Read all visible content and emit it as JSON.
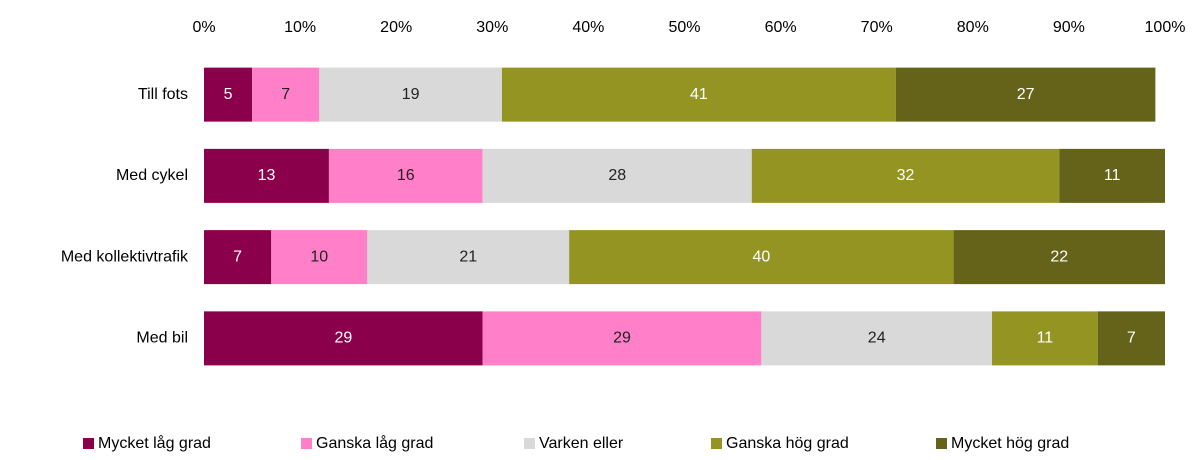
{
  "chart_data": {
    "type": "stacked_barh",
    "categories": [
      "Till fots",
      "Med cykel",
      "Med kollektivtrafik",
      "Med bil"
    ],
    "series": [
      {
        "name": "Mycket låg grad",
        "color": "#8b004b",
        "values": [
          5,
          13,
          7,
          29
        ]
      },
      {
        "name": "Ganska låg grad",
        "color": "#ff80c8",
        "values": [
          7,
          16,
          10,
          29
        ]
      },
      {
        "name": "Varken eller",
        "color": "#d9d9d9",
        "values": [
          19,
          28,
          21,
          24
        ]
      },
      {
        "name": "Ganska hög grad",
        "color": "#949423",
        "values": [
          41,
          32,
          40,
          11
        ]
      },
      {
        "name": "Mycket hög grad",
        "color": "#656219",
        "values": [
          27,
          11,
          22,
          7
        ]
      }
    ],
    "xlim": [
      0,
      100
    ],
    "xticks": [
      {
        "value": 0,
        "label": "0%"
      },
      {
        "value": 10,
        "label": "10%"
      },
      {
        "value": 20,
        "label": "20%"
      },
      {
        "value": 30,
        "label": "30%"
      },
      {
        "value": 40,
        "label": "40%"
      },
      {
        "value": 50,
        "label": "50%"
      },
      {
        "value": 60,
        "label": "60%"
      },
      {
        "value": 70,
        "label": "70%"
      },
      {
        "value": 80,
        "label": "80%"
      },
      {
        "value": 90,
        "label": "90%"
      },
      {
        "value": 100,
        "label": "100%"
      }
    ],
    "legend": "bottom"
  }
}
